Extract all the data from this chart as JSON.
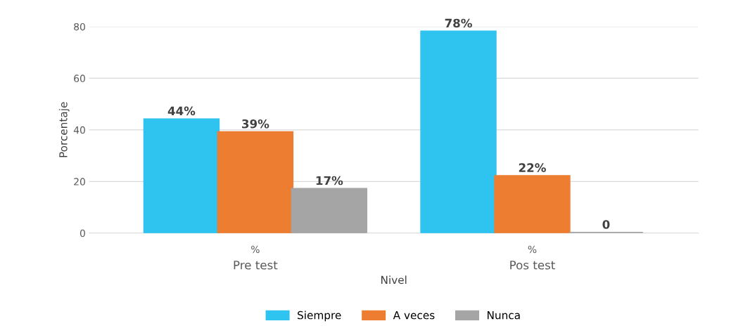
{
  "chart_data": {
    "type": "bar",
    "xlabel": "Nivel",
    "ylabel": "Porcentaje",
    "categories": [
      "Pre test",
      "Pos test"
    ],
    "annotations": [
      "%",
      "%"
    ],
    "series": [
      {
        "name": "Siempre",
        "color": "#2ec4ef",
        "values": [
          44,
          78
        ],
        "value_labels": [
          "44%",
          "78%"
        ]
      },
      {
        "name": "A veces",
        "color": "#ed7d31",
        "values": [
          39,
          22
        ],
        "value_labels": [
          "39%",
          "22%"
        ]
      },
      {
        "name": "Nunca",
        "color": "#a5a5a5",
        "values": [
          17,
          0
        ],
        "value_labels": [
          "17%",
          "0"
        ]
      }
    ],
    "ylim": [
      0,
      80
    ],
    "yticks": [
      0,
      20,
      40,
      60,
      80
    ],
    "grid": "y",
    "legend": "bottom"
  }
}
